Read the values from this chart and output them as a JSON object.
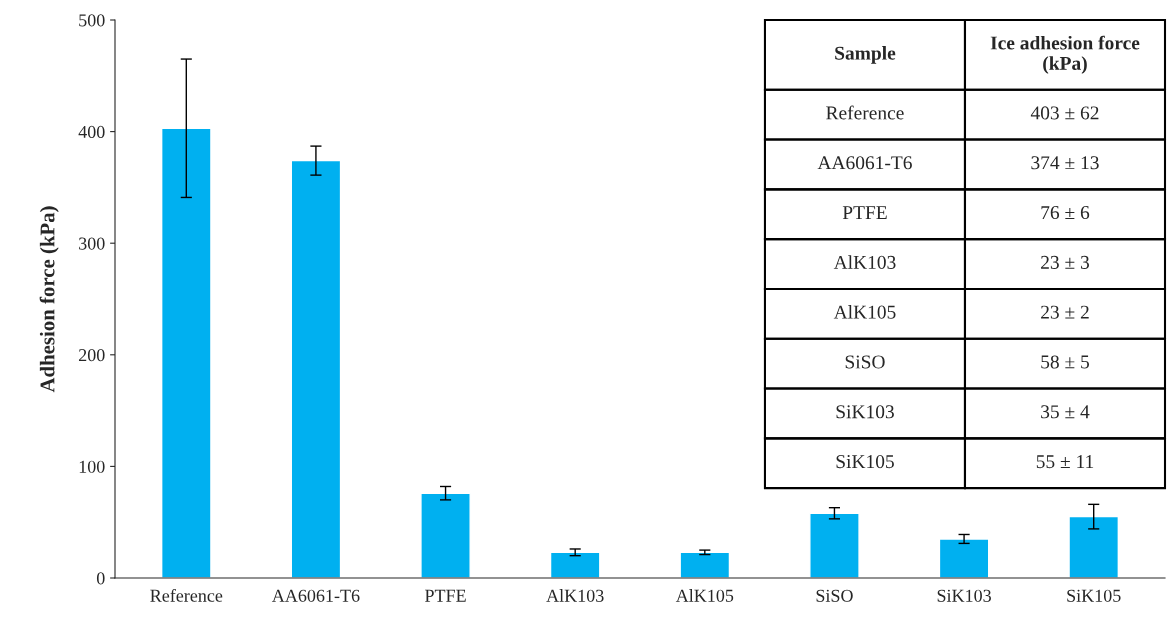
{
  "chart_data": {
    "type": "bar",
    "ylabel": "Adhesion force (kPa)",
    "categories": [
      "Reference",
      "AA6061-T6",
      "PTFE",
      "AlK103",
      "AlK105",
      "SiSO",
      "SiK103",
      "SiK105"
    ],
    "values": [
      403,
      374,
      76,
      23,
      23,
      58,
      35,
      55
    ],
    "errors": [
      62,
      13,
      6,
      3,
      2,
      5,
      4,
      11
    ],
    "color": "#00b0f0",
    "annotations": [
      "Sample",
      "Ice adhesion force (kPa)",
      "403 ± 62",
      "374 ± 13",
      "76 ± 6",
      "23 ± 3",
      "23 ± 2",
      "58 ± 5",
      "35 ± 4",
      "55 ± 11"
    ],
    "ylim": [
      0,
      500
    ],
    "yticks": [
      0,
      100,
      200,
      300,
      400,
      500
    ],
    "grid": false,
    "legend": false
  }
}
